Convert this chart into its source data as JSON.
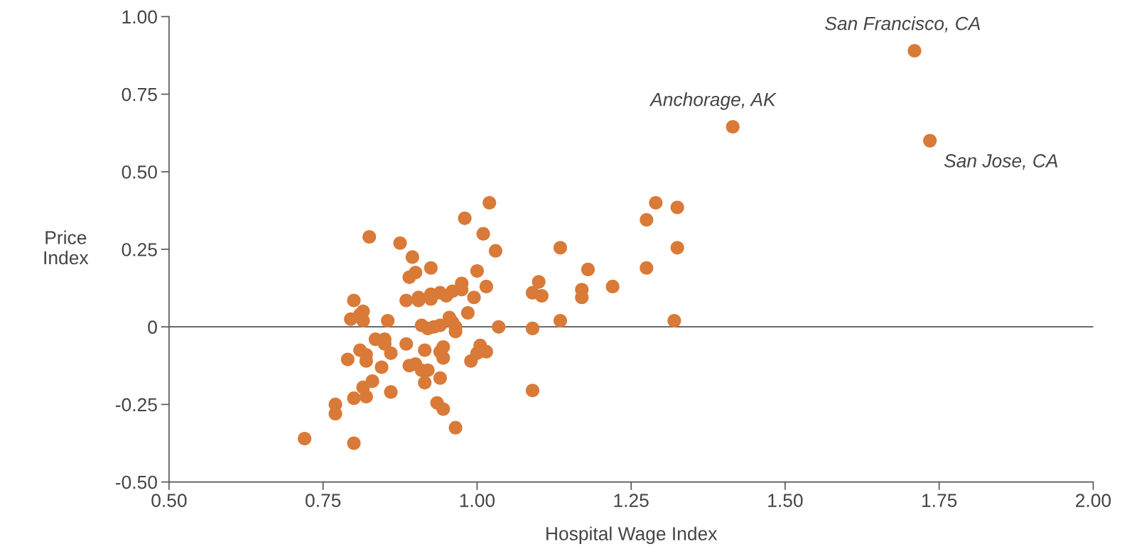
{
  "chart_data": {
    "type": "scatter",
    "xlabel": "Hospital Wage Index",
    "ylabel": "Price\nIndex",
    "xlim": [
      0.5,
      2.0
    ],
    "xticks": [
      {
        "value": 0.5,
        "label": "0.50"
      },
      {
        "value": 0.75,
        "label": "0.75"
      },
      {
        "value": 1.0,
        "label": "1.00"
      },
      {
        "value": 1.25,
        "label": "1.25"
      },
      {
        "value": 1.5,
        "label": "1.50"
      },
      {
        "value": 1.75,
        "label": "1.75"
      },
      {
        "value": 2.0,
        "label": "2.00"
      }
    ],
    "ylim": [
      -0.5,
      1.0
    ],
    "yticks": [
      {
        "value": -0.5,
        "label": "-0.50"
      },
      {
        "value": -0.25,
        "label": "-0.25"
      },
      0,
      {
        "value": 0.25,
        "label": "0.25"
      },
      {
        "value": 0.5,
        "label": "0.50"
      },
      {
        "value": 0.75,
        "label": "0.75"
      },
      {
        "value": 1.0,
        "label": "1.00"
      }
    ],
    "grid": false,
    "marker": "circle",
    "ref_lines": [
      {
        "axis": "y",
        "value": 0,
        "color": "#555555"
      }
    ],
    "annotations": [
      {
        "text": "San Francisco, CA",
        "x": 1.71,
        "y": 0.89
      },
      {
        "text": "Anchorage, AK",
        "x": 1.415,
        "y": 0.645
      },
      {
        "text": "San Jose, CA",
        "x": 1.735,
        "y": 0.6
      }
    ],
    "series": [
      {
        "color": "#d97a38",
        "x": [
          0.72,
          0.77,
          0.77,
          0.8,
          0.79,
          0.795,
          0.8,
          0.8,
          0.81,
          0.815,
          0.815,
          0.81,
          0.82,
          0.82,
          0.815,
          0.82,
          0.83,
          0.825,
          0.835,
          0.85,
          0.85,
          0.845,
          0.855,
          0.86,
          0.86,
          0.875,
          0.885,
          0.885,
          0.89,
          0.89,
          0.895,
          0.9,
          0.9,
          0.905,
          0.905,
          0.91,
          0.915,
          0.91,
          0.915,
          0.92,
          0.92,
          0.925,
          0.925,
          0.925,
          0.93,
          0.935,
          0.94,
          0.94,
          0.94,
          0.94,
          0.945,
          0.945,
          0.945,
          0.95,
          0.955,
          0.96,
          0.96,
          0.965,
          0.965,
          0.965,
          0.975,
          0.975,
          0.98,
          0.985,
          0.99,
          0.995,
          1.0,
          1.0,
          1.005,
          1.01,
          1.015,
          1.015,
          1.02,
          1.03,
          1.035,
          1.09,
          1.09,
          1.09,
          1.1,
          1.105,
          1.135,
          1.135,
          1.17,
          1.17,
          1.18,
          1.22,
          1.275,
          1.275,
          1.29,
          1.32,
          1.325,
          1.325,
          1.415,
          1.71,
          1.735
        ],
        "values": [
          -0.36,
          -0.25,
          -0.28,
          -0.375,
          -0.105,
          0.025,
          0.085,
          -0.23,
          0.04,
          0.05,
          0.02,
          -0.075,
          -0.09,
          -0.11,
          -0.195,
          -0.225,
          -0.175,
          0.29,
          -0.04,
          -0.04,
          -0.055,
          -0.13,
          0.02,
          -0.085,
          -0.21,
          0.27,
          0.085,
          -0.055,
          -0.125,
          0.16,
          0.225,
          0.175,
          -0.12,
          0.095,
          0.085,
          0.005,
          -0.075,
          -0.14,
          -0.18,
          -0.14,
          -0.005,
          0.19,
          0.105,
          0.09,
          0.0,
          -0.245,
          -0.165,
          0.11,
          0.005,
          -0.08,
          -0.065,
          -0.1,
          -0.265,
          0.1,
          0.03,
          0.015,
          0.115,
          0.0,
          -0.015,
          -0.325,
          0.12,
          0.14,
          0.35,
          0.045,
          -0.11,
          0.095,
          0.18,
          -0.085,
          -0.06,
          0.3,
          -0.08,
          0.13,
          0.4,
          0.245,
          0.0,
          0.11,
          -0.005,
          -0.205,
          0.145,
          0.1,
          0.02,
          0.255,
          0.12,
          0.095,
          0.185,
          0.13,
          0.345,
          0.19,
          0.4,
          0.02,
          0.385,
          0.255,
          0.645,
          0.89,
          0.6
        ]
      }
    ]
  }
}
